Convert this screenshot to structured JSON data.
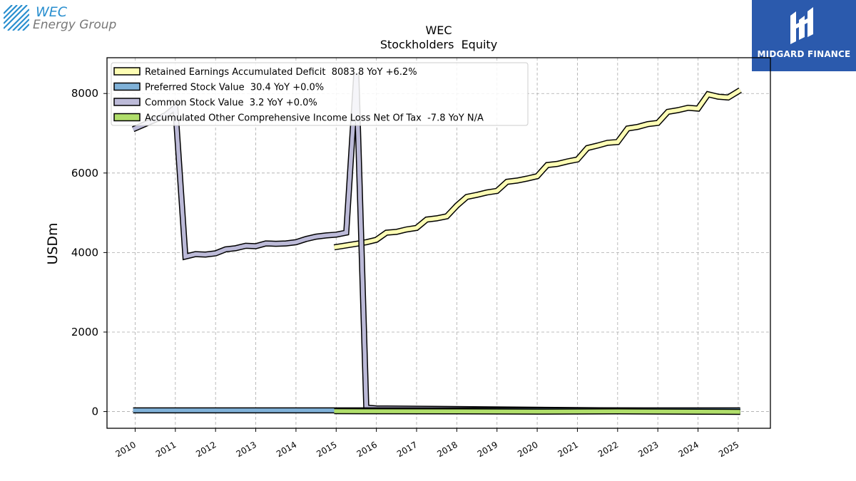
{
  "header": {
    "company_logo_line1": "WEC",
    "company_logo_line2": "Energy Group",
    "brand_name": "MIDGARD FINANCE"
  },
  "colors": {
    "retained": "#fdfdb4",
    "preferred": "#7fb1d8",
    "common": "#bcbad8",
    "aoci": "#b0de6b",
    "outline": "#000000",
    "brand_bg": "#2b5aad",
    "wec_blue": "#2a8fcf"
  },
  "chart_data": {
    "type": "line",
    "title": "WEC",
    "subtitle": "Stockholders  Equity",
    "xlabel": "",
    "ylabel": "USDm",
    "xlim": [
      2009.3,
      2025.8
    ],
    "ylim": [
      -420,
      8900
    ],
    "yticks": [
      0,
      2000,
      4000,
      6000,
      8000
    ],
    "xticks": [
      "2010",
      "2011",
      "2012",
      "2013",
      "2014",
      "2015",
      "2016",
      "2017",
      "2018",
      "2019",
      "2020",
      "2021",
      "2022",
      "2023",
      "2024",
      "2025"
    ],
    "grid": true,
    "legend_position": "top-left",
    "series": [
      {
        "name": "Retained Earnings Accumulated Deficit  8083.8 YoY +6.2%",
        "x": [
          2014.95,
          2015.75,
          2016.0,
          2016.25,
          2016.5,
          2016.75,
          2017.0,
          2017.25,
          2017.5,
          2017.75,
          2018.0,
          2018.25,
          2018.5,
          2018.75,
          2019.0,
          2019.25,
          2019.5,
          2019.75,
          2020.0,
          2020.25,
          2020.5,
          2020.75,
          2021.0,
          2021.25,
          2021.5,
          2021.75,
          2022.0,
          2022.25,
          2022.5,
          2022.75,
          2023.0,
          2023.25,
          2023.5,
          2023.75,
          2024.0,
          2024.25,
          2024.5,
          2024.75,
          2025.05
        ],
        "values": [
          4130,
          4260,
          4320,
          4500,
          4520,
          4580,
          4620,
          4830,
          4860,
          4910,
          5180,
          5400,
          5450,
          5510,
          5550,
          5780,
          5810,
          5860,
          5920,
          6200,
          6230,
          6290,
          6340,
          6630,
          6690,
          6760,
          6780,
          7120,
          7160,
          7230,
          7260,
          7540,
          7580,
          7640,
          7620,
          7980,
          7920,
          7900,
          8084
        ]
      },
      {
        "name": "Preferred Stock Value  30.4 YoY +0.0%",
        "x": [
          2009.95,
          2025.05
        ],
        "values": [
          30.4,
          30.4
        ]
      },
      {
        "name": "Common Stock Value  3.2 YoY +0.0%",
        "x": [
          2009.95,
          2010.75,
          2011.0,
          2011.25,
          2011.5,
          2011.75,
          2012.0,
          2012.25,
          2012.5,
          2012.75,
          2013.0,
          2013.25,
          2013.5,
          2013.75,
          2014.0,
          2014.25,
          2014.5,
          2014.75,
          2015.0,
          2015.25,
          2015.5,
          2015.75,
          2016.0,
          2025.05
        ],
        "values": [
          7100,
          7450,
          7650,
          3900,
          3960,
          3950,
          3980,
          4080,
          4110,
          4170,
          4160,
          4230,
          4220,
          4230,
          4260,
          4340,
          4400,
          4430,
          4450,
          4500,
          8500,
          100,
          80,
          3.2
        ]
      },
      {
        "name": "Accumulated Other Comprehensive Income Loss Net Of Tax  -7.8 YoY N/A",
        "x": [
          2014.95,
          2016.0,
          2018.0,
          2020.0,
          2022.0,
          2024.0,
          2025.05
        ],
        "values": [
          10,
          8,
          6,
          0,
          4,
          -2,
          -7.8
        ]
      }
    ]
  }
}
